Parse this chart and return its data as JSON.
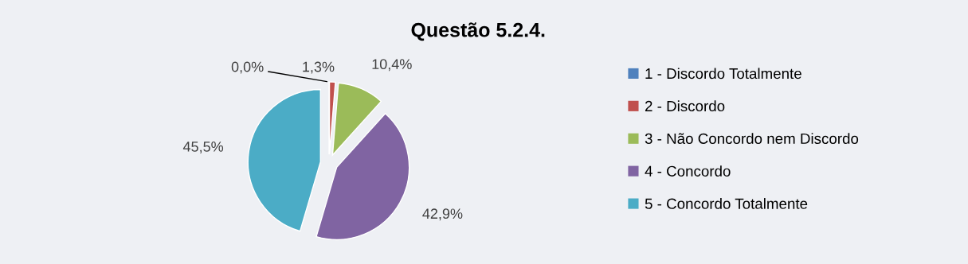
{
  "chart_data": {
    "type": "pie",
    "title": "Questão 5.2.4.",
    "categories": [
      "1 - Discordo Totalmente",
      "2 - Discordo",
      "3 - Não Concordo nem Discordo",
      "4 - Concordo",
      "5 - Concordo Totalmente"
    ],
    "values": [
      0.0,
      1.3,
      10.4,
      42.9,
      45.5
    ],
    "value_labels": [
      "0,0%",
      "1,3%",
      "10,4%",
      "42,9%",
      "45,5%"
    ],
    "colors": [
      "#4f81bd",
      "#c0504d",
      "#9bbb59",
      "#8064a2",
      "#4bacc6"
    ],
    "legend": "right"
  }
}
